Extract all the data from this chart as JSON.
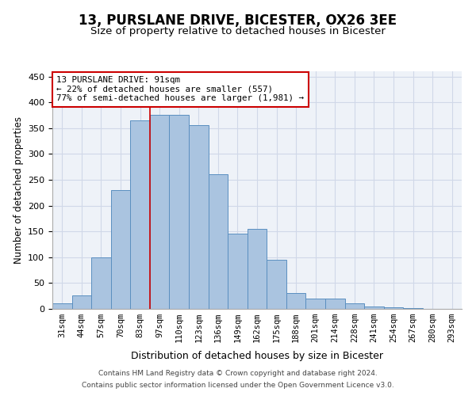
{
  "title": "13, PURSLANE DRIVE, BICESTER, OX26 3EE",
  "subtitle": "Size of property relative to detached houses in Bicester",
  "xlabel": "Distribution of detached houses by size in Bicester",
  "ylabel": "Number of detached properties",
  "categories": [
    "31sqm",
    "44sqm",
    "57sqm",
    "70sqm",
    "83sqm",
    "97sqm",
    "110sqm",
    "123sqm",
    "136sqm",
    "149sqm",
    "162sqm",
    "175sqm",
    "188sqm",
    "201sqm",
    "214sqm",
    "228sqm",
    "241sqm",
    "254sqm",
    "267sqm",
    "280sqm",
    "293sqm"
  ],
  "values": [
    10,
    26,
    100,
    230,
    365,
    375,
    375,
    355,
    260,
    145,
    155,
    95,
    30,
    20,
    20,
    10,
    5,
    3,
    1,
    0,
    0
  ],
  "bar_color": "#aac4e0",
  "bar_edge_color": "#5a8fc0",
  "grid_color": "#d0d8e8",
  "background_color": "#eef2f8",
  "annotation_box_color": "#cc0000",
  "annotation_text": "13 PURSLANE DRIVE: 91sqm\n← 22% of detached houses are smaller (557)\n77% of semi-detached houses are larger (1,981) →",
  "vline_x": 4.5,
  "vline_color": "#cc0000",
  "ylim": [
    0,
    460
  ],
  "yticks": [
    0,
    50,
    100,
    150,
    200,
    250,
    300,
    350,
    400,
    450
  ],
  "footer_line1": "Contains HM Land Registry data © Crown copyright and database right 2024.",
  "footer_line2": "Contains public sector information licensed under the Open Government Licence v3.0."
}
